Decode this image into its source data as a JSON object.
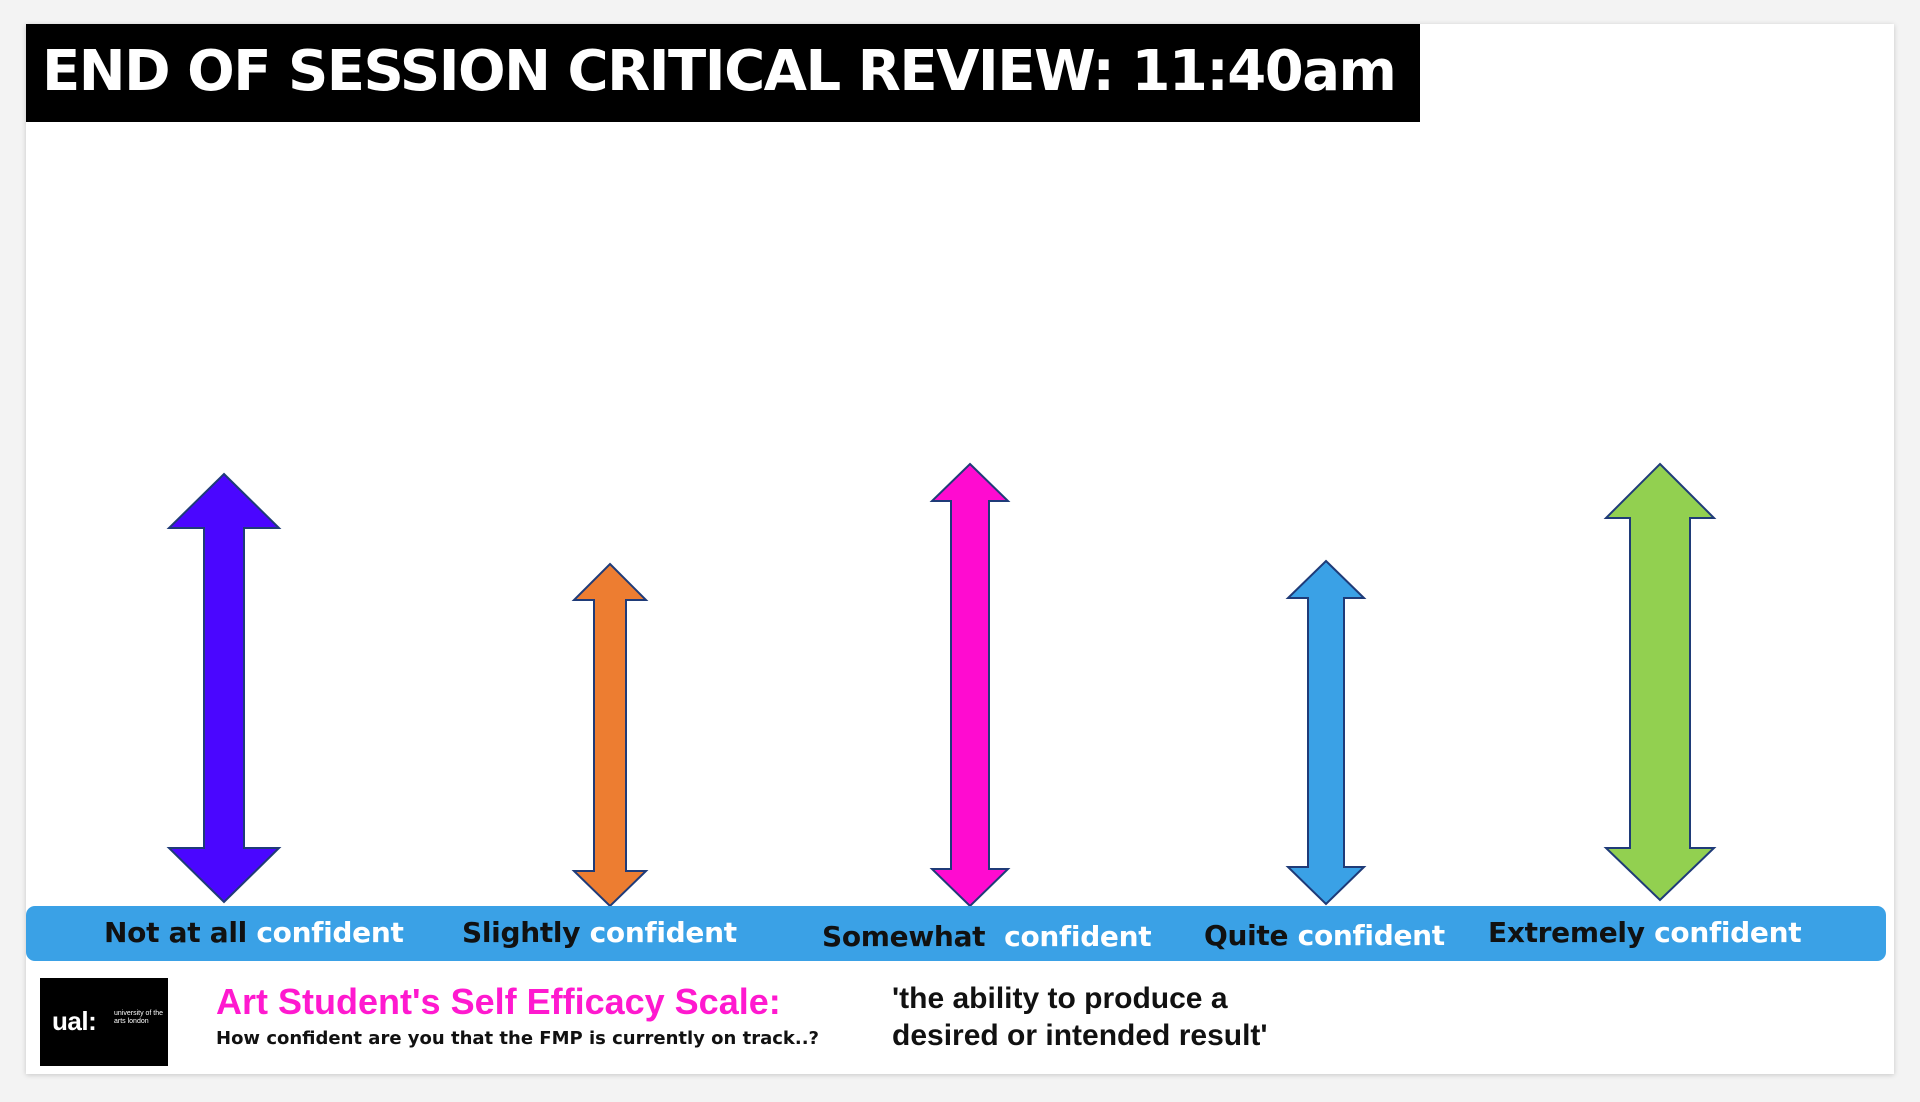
{
  "title": "END OF SESSION CRITICAL REVIEW: 11:40am",
  "scale": {
    "labels": [
      {
        "lead": "Not at all",
        "tail": " confident",
        "color": "#4a06ff",
        "icon": "double-arrow-vertical-icon"
      },
      {
        "lead": "Slightly",
        "tail": " confident",
        "color": "#ed7d31",
        "icon": "double-arrow-vertical-icon"
      },
      {
        "lead": "Somewhat",
        "tail": "  confident",
        "color": "#ff0bd0",
        "icon": "double-arrow-vertical-icon"
      },
      {
        "lead": "Quite",
        "tail": " confident",
        "color": "#3aa1e6",
        "icon": "double-arrow-vertical-icon"
      },
      {
        "lead": "Extremely",
        "tail": " confident",
        "color": "#92d050",
        "icon": "double-arrow-vertical-icon"
      }
    ],
    "bar_color": "#3aa1e6"
  },
  "footer": {
    "logo": {
      "main": "ual:",
      "sub": "university of the arts london"
    },
    "scale_title": "Art Student's Self Efficacy Scale:",
    "question": "How confident are you that the FMP is currently on track..?",
    "definition": "'the ability to produce a\ndesired or intended result'"
  },
  "colors": {
    "title_bg": "#000000",
    "title_text": "#ffffff",
    "scale_title": "#ff19cf",
    "arrow_outline": "#1f3b78"
  }
}
